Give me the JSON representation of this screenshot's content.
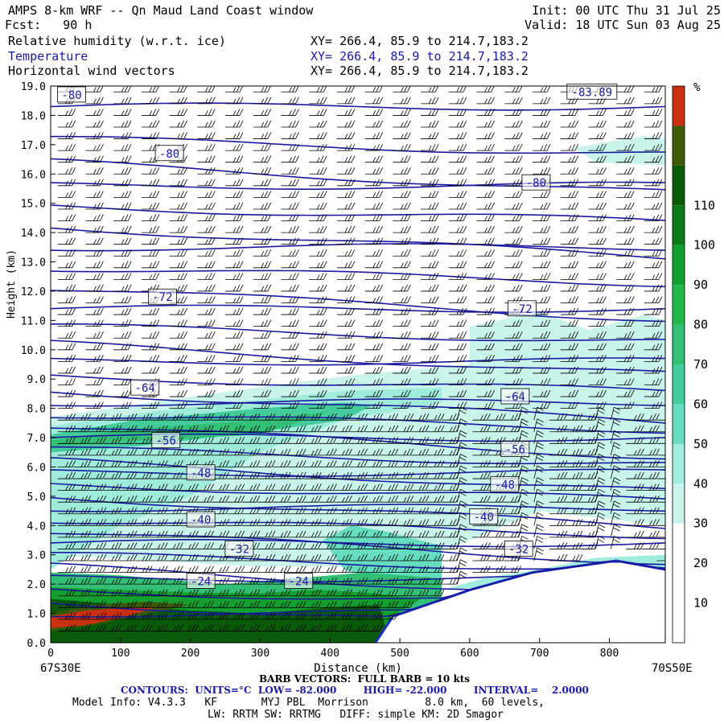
{
  "header": {
    "title": "AMPS 8-km WRF -- Qn Maud Land Coast window",
    "fcst": "Fcst:   90 h",
    "init": "Init: 00 UTC Thu 31 Jul 25",
    "valid": "Valid: 18 UTC Sun 03 Aug 25",
    "fields": [
      {
        "name": "Relative humidity (w.r.t. ice)",
        "xy": "XY= 266.4, 85.9 to 214.7,183.2"
      },
      {
        "name": "Temperature",
        "xy": "XY= 266.4, 85.9 to 214.7,183.2"
      },
      {
        "name": "Horizontal wind vectors",
        "xy": "XY= 266.4, 85.9 to 214.7,183.2"
      }
    ]
  },
  "colors": {
    "temperature_contour": "#1a1aa0",
    "rh_scale": [
      "#ffffff",
      "#ffffff",
      "#ffffff",
      "#c8f4ec",
      "#a0ecdc",
      "#66dcc0",
      "#44cc9c",
      "#33c076",
      "#22b84a",
      "#14a030",
      "#0a7a1a",
      "#0a5a0a",
      "#3c5a08",
      "#c83010"
    ]
  },
  "chart_data": {
    "type": "cross-section",
    "xlabel": "Distance (km)",
    "ylabel": "Height (km)",
    "xlim": [
      0,
      880
    ],
    "ylim": [
      0,
      19
    ],
    "x_ticks": [
      "0",
      "100",
      "200",
      "300",
      "400",
      "500",
      "600",
      "700",
      "800"
    ],
    "y_ticks": [
      "0.0",
      "1.0",
      "2.0",
      "3.0",
      "4.0",
      "5.0",
      "6.0",
      "7.0",
      "8.0",
      "9.0",
      "10.0",
      "11.0",
      "12.0",
      "13.0",
      "14.0",
      "15.0",
      "16.0",
      "17.0",
      "18.0",
      "19.0"
    ],
    "left_endpoint": "67S30E",
    "right_endpoint": "70S50E",
    "colorbar": {
      "unit": "%",
      "labels": [
        "10",
        "20",
        "30",
        "40",
        "50",
        "60",
        "70",
        "80",
        "90",
        "100",
        "110"
      ]
    },
    "contour_labels": [
      {
        "text": "-80",
        "x": 30,
        "y": 18.7
      },
      {
        "text": "-80",
        "x": 170,
        "y": 16.7
      },
      {
        "text": "-80",
        "x": 695,
        "y": 15.7
      },
      {
        "text": "-72",
        "x": 160,
        "y": 11.8
      },
      {
        "text": "-72",
        "x": 675,
        "y": 11.4
      },
      {
        "text": "-64",
        "x": 135,
        "y": 8.7
      },
      {
        "text": "-64",
        "x": 665,
        "y": 8.4
      },
      {
        "text": "-56",
        "x": 165,
        "y": 6.9
      },
      {
        "text": "-56",
        "x": 665,
        "y": 6.6
      },
      {
        "text": "-48",
        "x": 215,
        "y": 5.8
      },
      {
        "text": "-48",
        "x": 650,
        "y": 5.4
      },
      {
        "text": "-40",
        "x": 215,
        "y": 4.2
      },
      {
        "text": "-40",
        "x": 620,
        "y": 4.3
      },
      {
        "text": "-32",
        "x": 270,
        "y": 3.2
      },
      {
        "text": "-32",
        "x": 670,
        "y": 3.2
      },
      {
        "text": "-24",
        "x": 215,
        "y": 2.1
      },
      {
        "text": "-24",
        "x": 355,
        "y": 2.1
      },
      {
        "text": "-83.89",
        "x": 775,
        "y": 18.8
      }
    ],
    "temperature_range": {
      "low": -82.0,
      "high": -22.0,
      "interval": 2.0
    }
  },
  "footer": {
    "barb": "BARB VECTORS:  FULL BARB = 10 kts",
    "contours": "CONTOURS:  UNITS=°C  LOW= -82.000        HIGH= -22.000        INTERVAL=    2.0000",
    "model_info": "Model Info: V4.3.3   KF       MYJ PBL  Morrison         8.0 km,  60 levels,",
    "model_info2": "LW: RRTM SW: RRTMG   DIFF: simple KM: 2D Smagor"
  }
}
